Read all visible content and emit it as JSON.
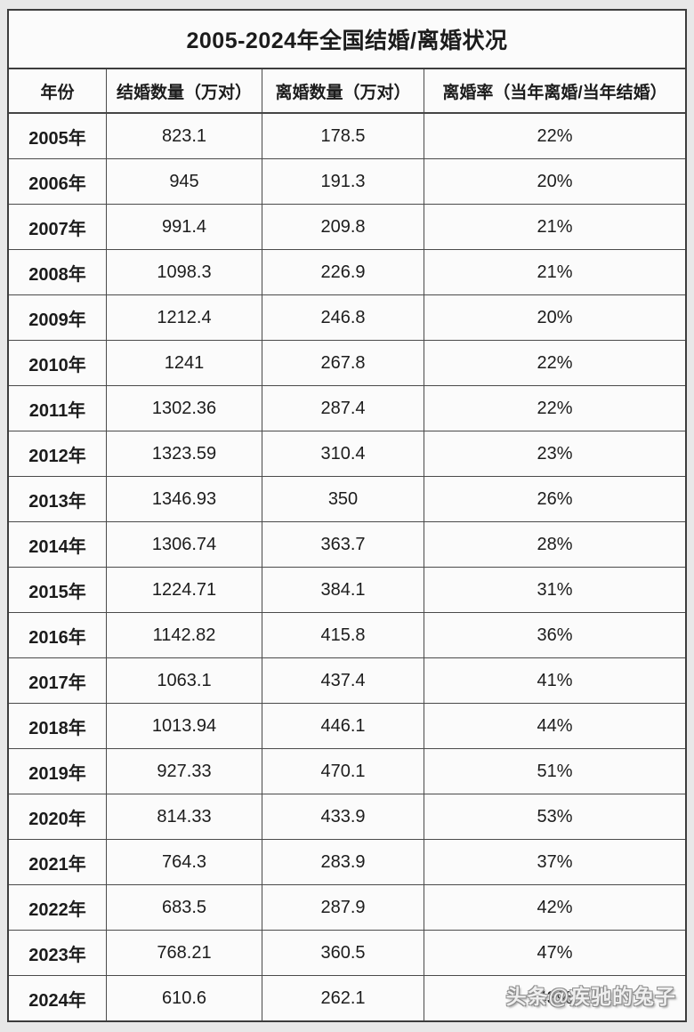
{
  "page": {
    "watermark": "头条@疾驰的兔子"
  },
  "theme": {
    "page_bg": "#e8e8e8",
    "cell_bg": "#fbfbfb",
    "border": "#3d3d3d",
    "text": "#1c1c1c"
  },
  "chart_data": {
    "type": "table",
    "title": "2005-2024年全国结婚/离婚状况",
    "columns": [
      "年份",
      "结婚数量（万对）",
      "离婚数量（万对）",
      "离婚率（当年离婚/当年结婚）"
    ],
    "column_units": [
      "",
      "万对",
      "万对",
      "当年离婚/当年结婚"
    ],
    "rows": [
      [
        "2005年",
        "823.1",
        "178.5",
        "22%"
      ],
      [
        "2006年",
        "945",
        "191.3",
        "20%"
      ],
      [
        "2007年",
        "991.4",
        "209.8",
        "21%"
      ],
      [
        "2008年",
        "1098.3",
        "226.9",
        "21%"
      ],
      [
        "2009年",
        "1212.4",
        "246.8",
        "20%"
      ],
      [
        "2010年",
        "1241",
        "267.8",
        "22%"
      ],
      [
        "2011年",
        "1302.36",
        "287.4",
        "22%"
      ],
      [
        "2012年",
        "1323.59",
        "310.4",
        "23%"
      ],
      [
        "2013年",
        "1346.93",
        "350",
        "26%"
      ],
      [
        "2014年",
        "1306.74",
        "363.7",
        "28%"
      ],
      [
        "2015年",
        "1224.71",
        "384.1",
        "31%"
      ],
      [
        "2016年",
        "1142.82",
        "415.8",
        "36%"
      ],
      [
        "2017年",
        "1063.1",
        "437.4",
        "41%"
      ],
      [
        "2018年",
        "1013.94",
        "446.1",
        "44%"
      ],
      [
        "2019年",
        "927.33",
        "470.1",
        "51%"
      ],
      [
        "2020年",
        "814.33",
        "433.9",
        "53%"
      ],
      [
        "2021年",
        "764.3",
        "283.9",
        "37%"
      ],
      [
        "2022年",
        "683.5",
        "287.9",
        "42%"
      ],
      [
        "2023年",
        "768.21",
        "360.5",
        "47%"
      ],
      [
        "2024年",
        "610.6",
        "262.1",
        "43%"
      ]
    ]
  }
}
